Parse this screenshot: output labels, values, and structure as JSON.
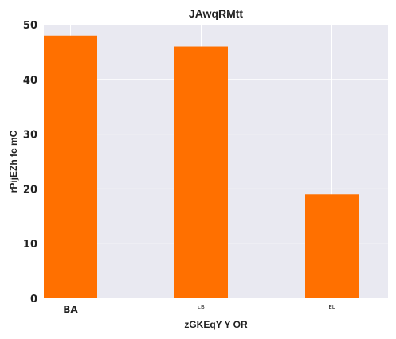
{
  "chart_data": {
    "type": "bar",
    "title": "JAwqRMtt",
    "xlabel": "zGKEqY Y OR",
    "ylabel": "rPijEZh fc mC",
    "categories": [
      "BA",
      "cB",
      "EL"
    ],
    "values": [
      48,
      46,
      19
    ],
    "ylim": [
      0,
      50
    ],
    "yticks": [
      0,
      10,
      20,
      30,
      40,
      50
    ],
    "grid": true,
    "bar_color": "#ff7000",
    "background_color": "#e9e9f1",
    "grid_color": "#ffffff"
  }
}
